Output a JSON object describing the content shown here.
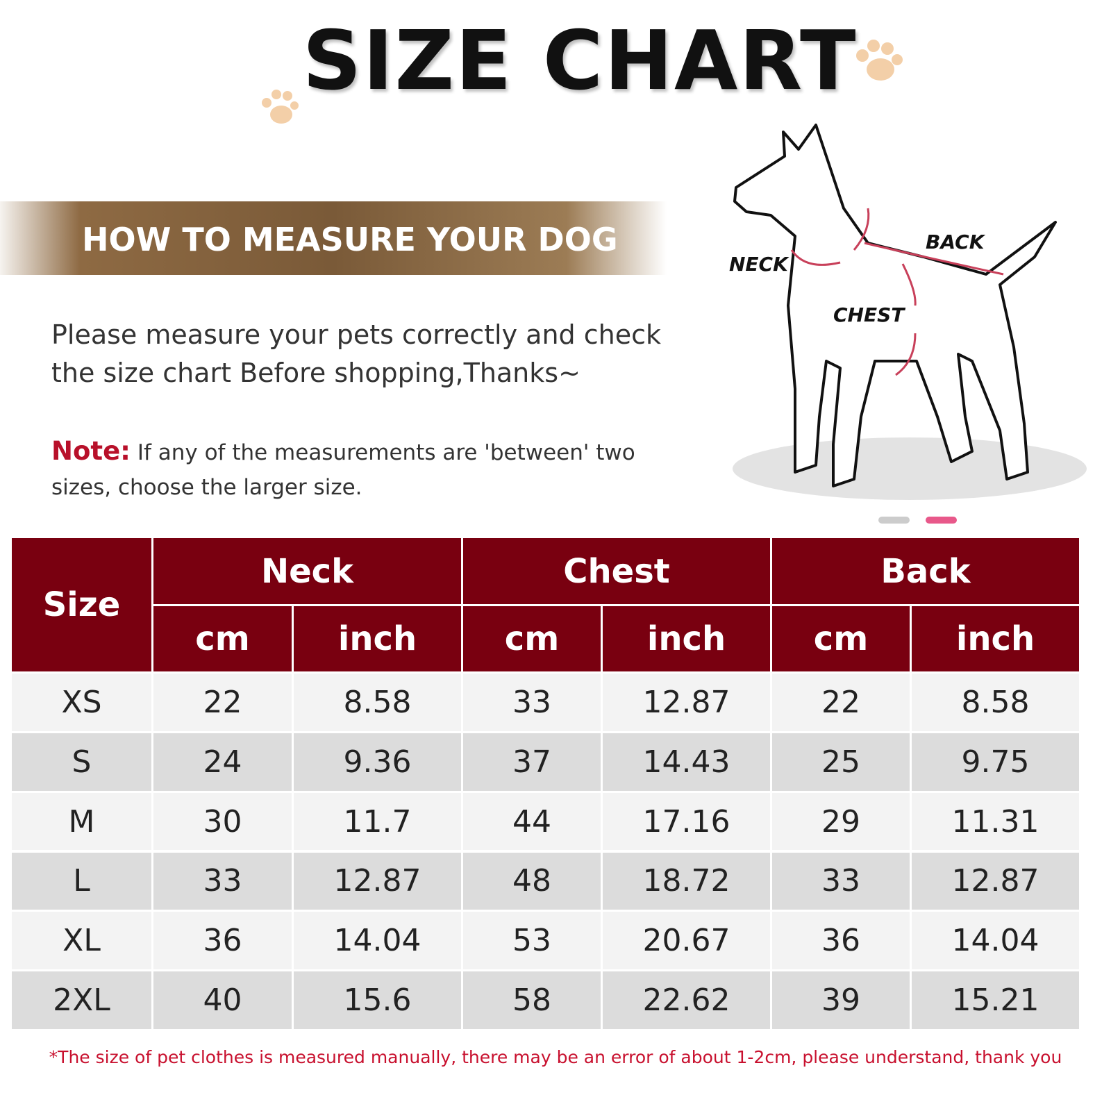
{
  "header": {
    "title": "SIZE CHART"
  },
  "banner": {
    "title": "HOW TO MEASURE YOUR DOG"
  },
  "intro": "Please measure your pets correctly and check the size chart Before shopping,Thanks~",
  "note": {
    "label": "Note:",
    "text": "If any of the measurements are 'between' two sizes, choose the larger size."
  },
  "diagram": {
    "labels": {
      "neck": "NECK",
      "back": "BACK",
      "chest": "CHEST"
    }
  },
  "table": {
    "size_header": "Size",
    "groups": [
      "Neck",
      "Chest",
      "Back"
    ],
    "units": [
      "cm",
      "inch",
      "cm",
      "inch",
      "cm",
      "inch"
    ],
    "rows": [
      [
        "XS",
        "22",
        "8.58",
        "33",
        "12.87",
        "22",
        "8.58"
      ],
      [
        "S",
        "24",
        "9.36",
        "37",
        "14.43",
        "25",
        "9.75"
      ],
      [
        "M",
        "30",
        "11.7",
        "44",
        "17.16",
        "29",
        "11.31"
      ],
      [
        "L",
        "33",
        "12.87",
        "48",
        "18.72",
        "33",
        "12.87"
      ],
      [
        "XL",
        "36",
        "14.04",
        "53",
        "20.67",
        "36",
        "14.04"
      ],
      [
        "2XL",
        "40",
        "15.6",
        "58",
        "22.62",
        "39",
        "15.21"
      ]
    ]
  },
  "footer": "*The size of pet clothes is measured manually, there may be an error of about 1-2cm, please understand, thank you"
}
